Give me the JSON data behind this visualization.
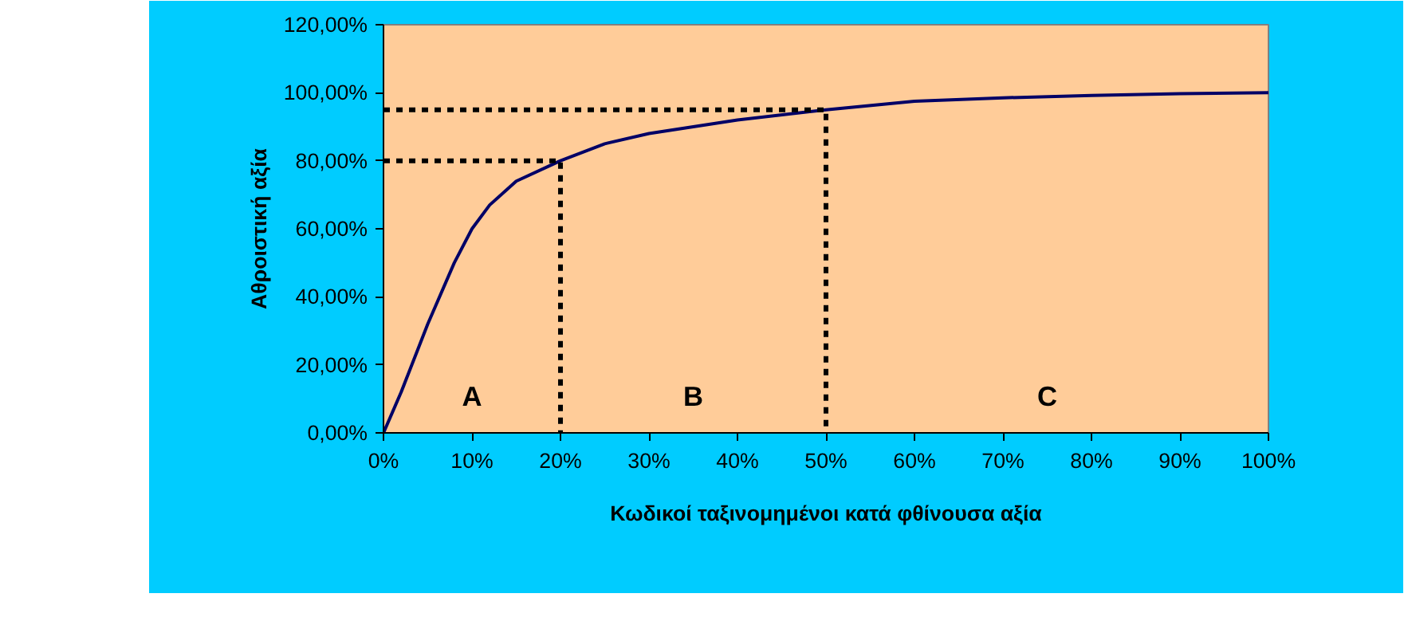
{
  "chart_data": {
    "type": "line",
    "xlabel": "Κωδικοί ταξινομημένοι κατά φθίνουσα αξία",
    "ylabel": "Αθροιστική αξία",
    "x": [
      0,
      2,
      5,
      8,
      10,
      12,
      15,
      20,
      25,
      30,
      40,
      50,
      60,
      70,
      80,
      90,
      100
    ],
    "series": [
      {
        "color": "#000066",
        "values": [
          0,
          12,
          32,
          50,
          60,
          67,
          74,
          80,
          85,
          88,
          92,
          95,
          97.5,
          98.5,
          99.2,
          99.7,
          100
        ]
      },
      {
        "color": "#000000",
        "line_style": "dashed",
        "x": [
          0,
          20,
          20
        ],
        "values": [
          80,
          80,
          0
        ]
      },
      {
        "color": "#000000",
        "line_style": "dashed",
        "x": [
          0,
          50,
          50
        ],
        "values": [
          95,
          95,
          0
        ]
      }
    ],
    "xlim": [
      0,
      100
    ],
    "ylim": [
      0,
      120
    ],
    "xticks": [
      {
        "value": 0,
        "label": "0%"
      },
      {
        "value": 10,
        "label": "10%"
      },
      {
        "value": 20,
        "label": "20%"
      },
      {
        "value": 30,
        "label": "30%"
      },
      {
        "value": 40,
        "label": "40%"
      },
      {
        "value": 50,
        "label": "50%"
      },
      {
        "value": 60,
        "label": "60%"
      },
      {
        "value": 70,
        "label": "70%"
      },
      {
        "value": 80,
        "label": "80%"
      },
      {
        "value": 90,
        "label": "90%"
      },
      {
        "value": 100,
        "label": "100%"
      }
    ],
    "yticks": [
      {
        "value": 0,
        "label": "0,00%"
      },
      {
        "value": 20,
        "label": "20,00%"
      },
      {
        "value": 40,
        "label": "40,00%"
      },
      {
        "value": 60,
        "label": "60,00%"
      },
      {
        "value": 80,
        "label": "80,00%"
      },
      {
        "value": 100,
        "label": "100,00%"
      },
      {
        "value": 120,
        "label": "120,00%"
      }
    ],
    "annotations": [
      "A",
      "B",
      "C"
    ],
    "grid": false,
    "line_style": "solid",
    "marker": "none"
  }
}
